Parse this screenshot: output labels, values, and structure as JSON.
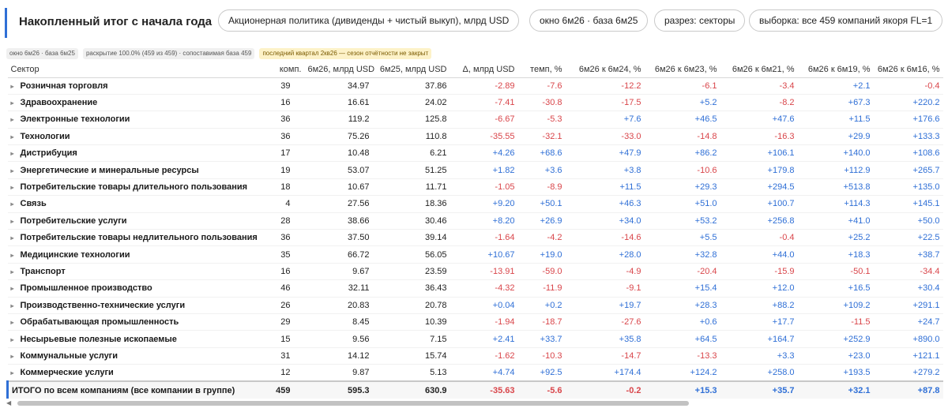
{
  "header": {
    "title": "Накопленный итог с начала года",
    "metric_pill": "Акционерная политика (дивиденды + чистый выкуп), млрд USD",
    "window_pill": "окно 6м26 · база 6м25",
    "cut_pill": "разрез: секторы",
    "sample_pill": "выборка: все 459 компаний якоря FL=1"
  },
  "chips": {
    "window": "окно 6м26 · база 6м25",
    "coverage": "раскрытие 100.0% (459 из 459) · сопоставимая база 459",
    "warning": "последний квартал 2кв26 — сезон отчётности не закрыт"
  },
  "colors": {
    "accent": "#2f6fd6",
    "positive": "#2f6fd6",
    "negative": "#d9454a"
  },
  "icons": {
    "row_expand": "chevron-right-icon",
    "scroll_left": "triangle-left-icon"
  },
  "table": {
    "headers": [
      "Сектор",
      "комп.",
      "6м26, млрд USD",
      "6м25, млрд USD",
      "Δ, млрд USD",
      "темп, %",
      "6м26 к 6м24, %",
      "6м26 к 6м23, %",
      "6м26 к 6м21, %",
      "6м26 к 6м19, %",
      "6м26 к 6м16, %"
    ],
    "rows": [
      [
        "Розничная торговля",
        "39",
        "34.97",
        "37.86",
        "-2.89",
        "-7.6",
        "-12.2",
        "-6.1",
        "-3.4",
        "+2.1",
        "-0.4"
      ],
      [
        "Здравоохранение",
        "16",
        "16.61",
        "24.02",
        "-7.41",
        "-30.8",
        "-17.5",
        "+5.2",
        "-8.2",
        "+67.3",
        "+220.2"
      ],
      [
        "Электронные технологии",
        "36",
        "119.2",
        "125.8",
        "-6.67",
        "-5.3",
        "+7.6",
        "+46.5",
        "+47.6",
        "+11.5",
        "+176.6"
      ],
      [
        "Технологии",
        "36",
        "75.26",
        "110.8",
        "-35.55",
        "-32.1",
        "-33.0",
        "-14.8",
        "-16.3",
        "+29.9",
        "+133.3"
      ],
      [
        "Дистрибуция",
        "17",
        "10.48",
        "6.21",
        "+4.26",
        "+68.6",
        "+47.9",
        "+86.2",
        "+106.1",
        "+140.0",
        "+108.6"
      ],
      [
        "Энергетические и минеральные ресурсы",
        "19",
        "53.07",
        "51.25",
        "+1.82",
        "+3.6",
        "+3.8",
        "-10.6",
        "+179.8",
        "+112.9",
        "+265.7"
      ],
      [
        "Потребительские товары длительного пользования",
        "18",
        "10.67",
        "11.71",
        "-1.05",
        "-8.9",
        "+11.5",
        "+29.3",
        "+294.5",
        "+513.8",
        "+135.0"
      ],
      [
        "Связь",
        "4",
        "27.56",
        "18.36",
        "+9.20",
        "+50.1",
        "+46.3",
        "+51.0",
        "+100.7",
        "+114.3",
        "+145.1"
      ],
      [
        "Потребительские услуги",
        "28",
        "38.66",
        "30.46",
        "+8.20",
        "+26.9",
        "+34.0",
        "+53.2",
        "+256.8",
        "+41.0",
        "+50.0"
      ],
      [
        "Потребительские товары недлительного пользования",
        "36",
        "37.50",
        "39.14",
        "-1.64",
        "-4.2",
        "-14.6",
        "+5.5",
        "-0.4",
        "+25.2",
        "+22.5"
      ],
      [
        "Медицинские технологии",
        "35",
        "66.72",
        "56.05",
        "+10.67",
        "+19.0",
        "+28.0",
        "+32.8",
        "+44.0",
        "+18.3",
        "+38.7"
      ],
      [
        "Транспорт",
        "16",
        "9.67",
        "23.59",
        "-13.91",
        "-59.0",
        "-4.9",
        "-20.4",
        "-15.9",
        "-50.1",
        "-34.4"
      ],
      [
        "Промышленное производство",
        "46",
        "32.11",
        "36.43",
        "-4.32",
        "-11.9",
        "-9.1",
        "+15.4",
        "+12.0",
        "+16.5",
        "+30.4"
      ],
      [
        "Производственно-технические услуги",
        "26",
        "20.83",
        "20.78",
        "+0.04",
        "+0.2",
        "+19.7",
        "+28.3",
        "+88.2",
        "+109.2",
        "+291.1"
      ],
      [
        "Обрабатывающая промышленность",
        "29",
        "8.45",
        "10.39",
        "-1.94",
        "-18.7",
        "-27.6",
        "+0.6",
        "+17.7",
        "-11.5",
        "+24.7"
      ],
      [
        "Несырьевые полезные ископаемые",
        "15",
        "9.56",
        "7.15",
        "+2.41",
        "+33.7",
        "+35.8",
        "+64.5",
        "+164.7",
        "+252.9",
        "+890.0"
      ],
      [
        "Коммунальные услуги",
        "31",
        "14.12",
        "15.74",
        "-1.62",
        "-10.3",
        "-14.7",
        "-13.3",
        "+3.3",
        "+23.0",
        "+121.1"
      ],
      [
        "Коммерческие услуги",
        "12",
        "9.87",
        "5.13",
        "+4.74",
        "+92.5",
        "+174.4",
        "+124.2",
        "+258.0",
        "+193.5",
        "+279.2"
      ]
    ],
    "total": [
      "ИТОГО по всем компаниям (все компании в группе)",
      "459",
      "595.3",
      "630.9",
      "-35.63",
      "-5.6",
      "-0.2",
      "+15.3",
      "+35.7",
      "+32.1",
      "+87.8"
    ]
  }
}
